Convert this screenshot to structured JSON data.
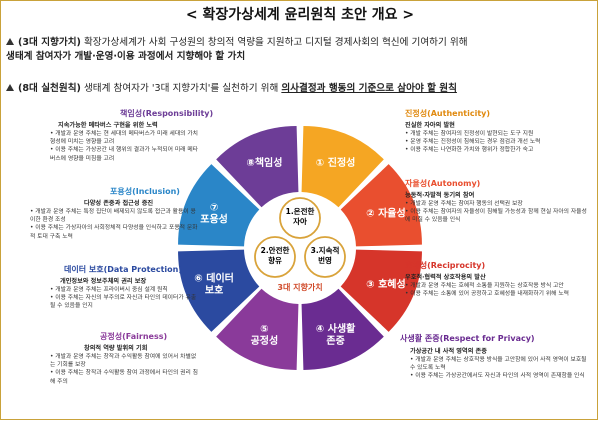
{
  "title": "< 확장가상세계 윤리원칙 초안 개요 >",
  "intro": {
    "line1_bracket": "(3대 지향가치)",
    "line1_rest": " 확장가상세계가 사회 구성원의 창의적 역량을 지원하고 디지털 경제사회의 혁신에 기여하기 위해",
    "line1_b": "생태계 참여자가 개발·운영·이용 과정에서 지향해야 할 가치",
    "line2_bracket": "(8대 실천원칙)",
    "line2_rest": " 생태계 참여자가 '3대 지향가치'를 실천하기 위해 ",
    "line2_u": "의사결정과 행동의 기준으로 삼아야 할 원칙"
  },
  "center": {
    "label": "3대 지향가치",
    "values": [
      "1.온전한 자아",
      "2.안전한 향유",
      "3.지속적 번영"
    ]
  },
  "segments": [
    {
      "label": "① 진정성",
      "color": "#f5a623"
    },
    {
      "label": "② 자율성",
      "color": "#e94f2f"
    },
    {
      "label": "③ 호혜성",
      "color": "#d6352a"
    },
    {
      "label": "④ 사생활 존중",
      "color": "#6a2c91"
    },
    {
      "label": "⑤ 공정성",
      "color": "#8a3a9a"
    },
    {
      "label": "⑥ 데이터 보호",
      "color": "#2b4aa0"
    },
    {
      "label": "⑦ 포용성",
      "color": "#2a86c8"
    },
    {
      "label": "⑧책임성",
      "color": "#6d3d97"
    }
  ],
  "principles": {
    "responsibility": {
      "title": "책임성(Responsibility)",
      "sub": "지속가능한 메타버스 구현을 위한 노력",
      "bullets": [
        "• 개발과 운영 주체는 현 세대의 메타버스가 미래 세대의 가치 형성에 미치는 영향을 고려",
        "• 이용 주체는 가상공간 내 행위의 결과가 누적되어 미래 메타버스에 영향을 미침을 고려"
      ]
    },
    "inclusion": {
      "title": "포용성(Inclusion)",
      "sub": "다양성 존중과 접근성 증진",
      "bullets": [
        "• 개발과 운영 주체는 특정 집단이 배제되지 않도록 접근과 활용이 용이한 환경 조성",
        "• 이용 주체는 가상자아의 사회정체적 다양성을 인식하고 포용적 문화적 토대 구축 노력"
      ]
    },
    "data": {
      "title": "데이터 보호(Data Protection)",
      "sub": "개인정보와 정보주체의 권리 보장",
      "bullets": [
        "• 개발과 운영 주체는 프라이버시 중심 설계 원칙",
        "• 이용 주체는 자신의 부주의로 자신과 타인의 데이터가 유출될 수 있음을 인지"
      ]
    },
    "fairness": {
      "title": "공정성(Fairness)",
      "sub": "창의적 역량 발휘의 기회",
      "bullets": [
        "• 개발과 운영 주체는 창작과 수익활동 참여에 있어서 차별없는 기회를 보장",
        "• 이용 주체는 창작과 수익활동 참여 과정에서 타인의 권리 침해 주의"
      ]
    },
    "authenticity": {
      "title": "진정성(Authenticity)",
      "sub": "진실한 자아의 발현",
      "bullets": [
        "• 개발 주체는 참여자의 진정성이 발현되는 도구 지원",
        "• 운영 주체는 진정성이 침해되는 경우 점검과 개선 노력",
        "• 이용 주체는 나연화한 가치와 행위가 정합한가 숙고"
      ]
    },
    "autonomy": {
      "title": "자율성(Autonomy)",
      "sub": "능동적·자발적 동기의 참여",
      "bullets": [
        "• 개발과 운영 주체는 참여자 행동의 선택권 보장",
        "• 이용 주체는 참여자의 자율성이 침해될 가능성과 함께 현실 자아의 자율성에 미칠 수 있음을 인식"
      ]
    },
    "reciprocity": {
      "title": "호혜성(Reciprocity)",
      "sub": "우호적·협력적 상호작용의 발산",
      "bullets": [
        "• 개발과 운영 주체는 호혜적 소통을 지원하는 상호작용 방식 고안",
        "• 이용 주체는 소통에 있어 공정하고 호혜성을 내재화하기 위해 노력"
      ]
    },
    "privacy": {
      "title": "사생활 존중(Respect for Privacy)",
      "sub": "가상공간 내 사적 영역의 존중",
      "bullets": [
        "• 개발과 운영 주체는 상호작용 방식을 고안함에 있어 사적 영역이 보호될 수 있도록 노력",
        "• 이용 주체는 가상공간에서도 자신과 타인의 사적 영역이 존재함을 인식"
      ]
    }
  },
  "colors": {
    "gold": "#c9a23a"
  }
}
